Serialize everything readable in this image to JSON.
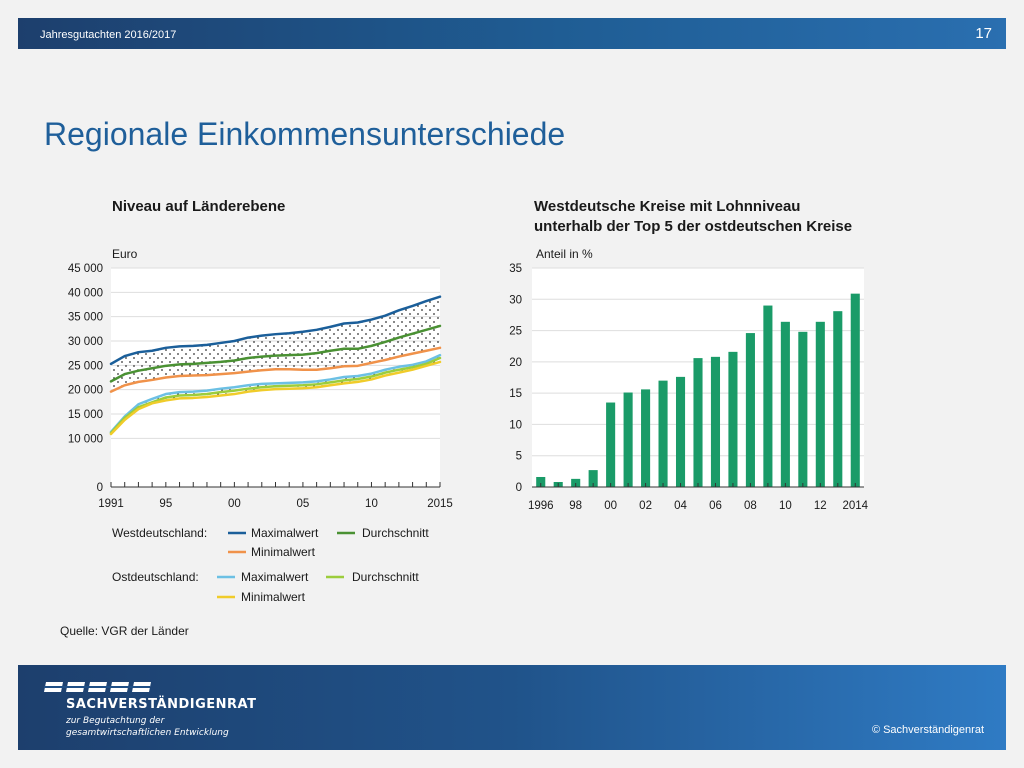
{
  "header": {
    "left_text": "Jahresgutachten  2016/2017",
    "page_number": "17"
  },
  "page_title": "Regionale Einkommensunterschiede",
  "left_chart": {
    "subtitle": "Niveau auf Länderebene",
    "unit": "Euro"
  },
  "right_chart": {
    "subtitle_line1": "Westdeutsche Kreise mit Lohnniveau",
    "subtitle_line2": "unterhalb der Top 5 der ostdeutschen Kreise",
    "unit": "Anteil in %"
  },
  "legend": {
    "west_label": "Westdeutschland:",
    "east_label": "Ostdeutschland:",
    "max": "Maximalwert",
    "avg": "Durchschnitt",
    "min": "Minimalwert"
  },
  "source": "Quelle: VGR der Länder",
  "footer": {
    "brand": "SACHVERSTÄNDIGENRAT",
    "sub1": "zur Begutachtung der",
    "sub2": "gesamtwirtschaftlichen Entwicklung",
    "copyright": "© Sachverständigenrat"
  },
  "colors": {
    "west_max": "#1b5f9a",
    "west_avg": "#4a9133",
    "west_min": "#f0924a",
    "east_max": "#6cc0e4",
    "east_avg": "#9ccd3c",
    "east_min": "#f0cc2a",
    "bar": "#1a9b68",
    "header_bg": "#1f4f86"
  },
  "chart_data": [
    {
      "type": "line",
      "title": "Niveau auf Länderebene",
      "ylabel": "Euro",
      "ylim": [
        0,
        45000
      ],
      "yticks": [
        0,
        10000,
        15000,
        20000,
        25000,
        30000,
        35000,
        40000,
        45000
      ],
      "ytick_labels": [
        "0",
        "10 000",
        "15 000",
        "20 000",
        "25 000",
        "30 000",
        "35 000",
        "40 000",
        "45 000"
      ],
      "xlim": [
        1991,
        2015
      ],
      "xticks": [
        1991,
        1995,
        2000,
        2005,
        2010,
        2015
      ],
      "xtick_labels": [
        "1991",
        "95",
        "00",
        "05",
        "10",
        "2015"
      ],
      "x": [
        1991,
        1992,
        1993,
        1994,
        1995,
        1996,
        1997,
        1998,
        1999,
        2000,
        2001,
        2002,
        2003,
        2004,
        2005,
        2006,
        2007,
        2008,
        2009,
        2010,
        2011,
        2012,
        2013,
        2014,
        2015
      ],
      "series": [
        {
          "name": "Westdeutschland: Maximalwert",
          "values": [
            25300,
            26900,
            27700,
            28000,
            28600,
            28900,
            29000,
            29200,
            29600,
            30000,
            30700,
            31100,
            31400,
            31600,
            31900,
            32300,
            32900,
            33600,
            33800,
            34400,
            35200,
            36300,
            37200,
            38200,
            39100
          ]
        },
        {
          "name": "Westdeutschland: Durchschnitt",
          "values": [
            21700,
            23200,
            23900,
            24400,
            24900,
            25200,
            25300,
            25500,
            25700,
            26000,
            26500,
            26800,
            27000,
            27100,
            27200,
            27500,
            28000,
            28400,
            28400,
            29000,
            29800,
            30700,
            31500,
            32300,
            33100
          ]
        },
        {
          "name": "Westdeutschland: Minimalwert",
          "values": [
            19600,
            20900,
            21600,
            22000,
            22500,
            22800,
            22900,
            23000,
            23200,
            23400,
            23700,
            24000,
            24200,
            24200,
            24100,
            24100,
            24400,
            24800,
            24900,
            25500,
            26100,
            26800,
            27400,
            28000,
            28600
          ]
        },
        {
          "name": "Ostdeutschland: Maximalwert",
          "values": [
            11300,
            14500,
            17000,
            18100,
            19100,
            19500,
            19600,
            19800,
            20200,
            20500,
            20900,
            21200,
            21300,
            21400,
            21500,
            21700,
            22100,
            22600,
            22800,
            23300,
            24100,
            24700,
            25100,
            25800,
            27100
          ]
        },
        {
          "name": "Ostdeutschland: Durchschnitt",
          "values": [
            11100,
            14200,
            16400,
            17400,
            18400,
            18800,
            18900,
            19100,
            19500,
            19800,
            20200,
            20500,
            20700,
            20800,
            20900,
            21100,
            21500,
            21900,
            22200,
            22700,
            23500,
            24100,
            24600,
            25300,
            26500
          ]
        },
        {
          "name": "Ostdeutschland: Minimalwert",
          "values": [
            10900,
            13800,
            16000,
            17200,
            17800,
            18200,
            18300,
            18500,
            18800,
            19100,
            19600,
            19900,
            20100,
            20200,
            20300,
            20500,
            20900,
            21300,
            21600,
            22100,
            22900,
            23500,
            24100,
            24900,
            25700
          ]
        }
      ]
    },
    {
      "type": "bar",
      "title": "Westdeutsche Kreise mit Lohnniveau unterhalb der Top 5 der ostdeutschen Kreise",
      "ylabel": "Anteil in %",
      "ylim": [
        0,
        35
      ],
      "yticks": [
        0,
        5,
        10,
        15,
        20,
        25,
        30,
        35
      ],
      "categories": [
        1996,
        1997,
        1998,
        1999,
        2000,
        2001,
        2002,
        2003,
        2004,
        2005,
        2006,
        2007,
        2008,
        2009,
        2010,
        2011,
        2012,
        2013,
        2014
      ],
      "xtick_labels": [
        "1996",
        "98",
        "00",
        "02",
        "04",
        "06",
        "08",
        "10",
        "12",
        "2014"
      ],
      "values": [
        1.6,
        0.8,
        1.3,
        2.7,
        13.5,
        15.1,
        15.6,
        17.0,
        17.6,
        20.6,
        20.8,
        21.6,
        24.6,
        29.0,
        26.4,
        24.8,
        26.4,
        28.1,
        30.9
      ]
    }
  ]
}
